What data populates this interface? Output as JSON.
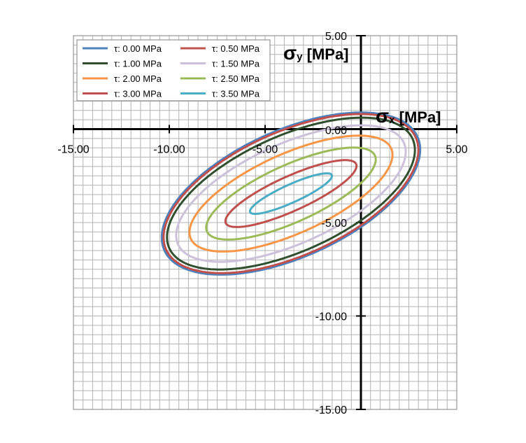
{
  "chart_data": {
    "type": "line",
    "x_axis": {
      "label_symbol": "σ",
      "label_sub": "x",
      "label_unit": " [MPa]",
      "range": [
        -15,
        5
      ],
      "ticks": [
        -15,
        -10,
        -5,
        0,
        5
      ],
      "tick_labels": [
        "-15.00",
        "-10.00",
        "-5.00",
        "0.00",
        "5.00"
      ],
      "minor_step": 0.5
    },
    "y_axis": {
      "label_symbol": "σ",
      "label_sub": "y",
      "label_unit": " [MPa]",
      "range": [
        -15,
        5
      ],
      "ticks": [
        -15,
        -10,
        -5,
        0,
        5
      ],
      "tick_labels": [
        "-15.00",
        "-10.00",
        "-5.00",
        "0.00",
        "5.00"
      ],
      "minor_step": 0.5
    },
    "grid": true,
    "legend_position": "top-left",
    "series": [
      {
        "name": "τ: 0.00 MPa",
        "color": "#4f81bd",
        "cx": -3.65,
        "cy": -3.45,
        "rx": 7.27,
        "ry": 3.38,
        "tilt_deg": 25
      },
      {
        "name": "τ: 0.50 MPa",
        "color": "#c0504d",
        "cx": -3.65,
        "cy": -3.45,
        "rx": 7.17,
        "ry": 3.3,
        "tilt_deg": 25
      },
      {
        "name": "τ: 1.00 MPa",
        "color": "#2f4f2f",
        "cx": -3.65,
        "cy": -3.45,
        "rx": 6.99,
        "ry": 3.08,
        "tilt_deg": 25
      },
      {
        "name": "τ: 1.50 MPa",
        "color": "#ccc0da",
        "cx": -3.65,
        "cy": -3.45,
        "rx": 6.49,
        "ry": 2.66,
        "tilt_deg": 25
      },
      {
        "name": "τ: 2.00 MPa",
        "color": "#f79646",
        "cx": -3.65,
        "cy": -3.45,
        "rx": 5.76,
        "ry": 2.12,
        "tilt_deg": 25
      },
      {
        "name": "τ: 2.50 MPa",
        "color": "#9bbb59",
        "cx": -3.65,
        "cy": -3.45,
        "rx": 4.83,
        "ry": 1.52,
        "tilt_deg": 25
      },
      {
        "name": "τ: 3.00 MPa",
        "color": "#c0504d",
        "cx": -3.65,
        "cy": -3.45,
        "rx": 3.75,
        "ry": 0.92,
        "tilt_deg": 25
      },
      {
        "name": "τ: 3.50 MPa",
        "color": "#4bacc6",
        "cx": -3.65,
        "cy": -3.45,
        "rx": 2.35,
        "ry": 0.48,
        "tilt_deg": 25
      }
    ]
  }
}
